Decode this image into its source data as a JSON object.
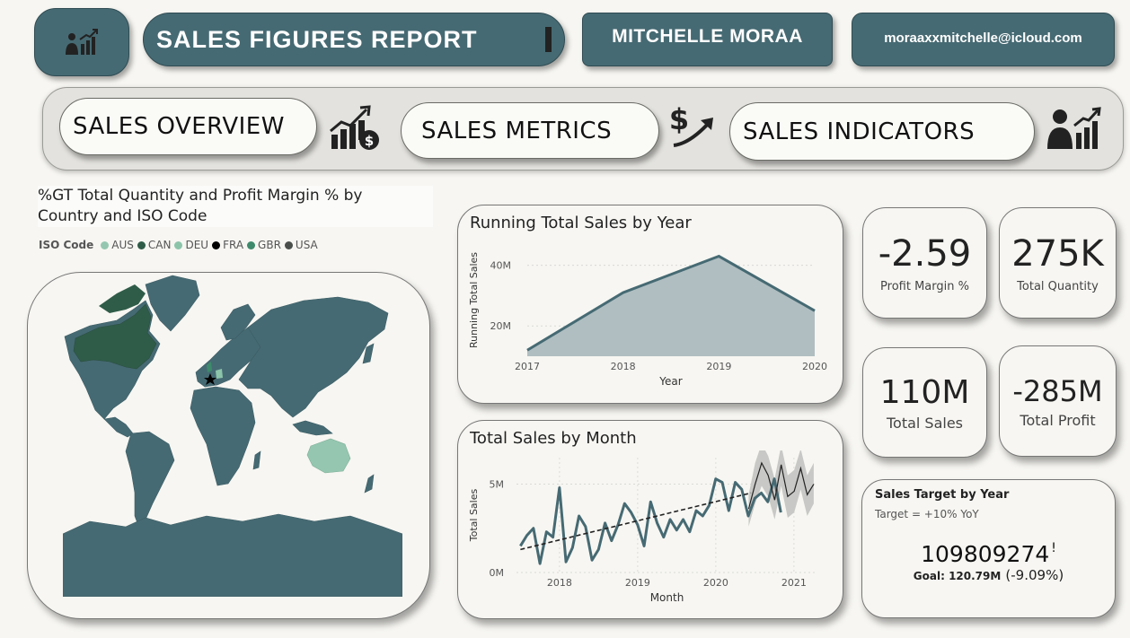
{
  "header": {
    "icon": "chart-bars-user-icon",
    "title": "SALES FIGURES REPORT",
    "author": "MITCHELLE MORAA",
    "email": "moraaxxmitchelle@icloud.com"
  },
  "nav": {
    "items": [
      {
        "label": "SALES OVERVIEW",
        "icon": "chart-money-icon"
      },
      {
        "label": "SALES METRICS",
        "icon": "dollar-arrow-icon"
      },
      {
        "label": "SALES INDICATORS",
        "icon": "people-chart-icon"
      }
    ]
  },
  "map": {
    "title_line1": "%GT Total Quantity and Profit Margin % by",
    "title_line2": "Country and ISO Code",
    "legend_title": "ISO Code",
    "legend": [
      {
        "code": "AUS",
        "color": "#95c7b0"
      },
      {
        "code": "CAN",
        "color": "#2f5c49"
      },
      {
        "code": "DEU",
        "color": "#8cc4aa"
      },
      {
        "code": "FRA",
        "color": "#000000"
      },
      {
        "code": "GBR",
        "color": "#3e8a6c"
      },
      {
        "code": "USA",
        "color": "#4a4f4c"
      }
    ],
    "land_color": "#466a73"
  },
  "kpis": [
    {
      "value": "-2.59",
      "label": "Profit Margin %"
    },
    {
      "value": "275K",
      "label": "Total Quantity"
    },
    {
      "value": "110M",
      "label": "Total Sales"
    },
    {
      "value": "-285M",
      "label": "Total Profit"
    }
  ],
  "target": {
    "title": "Sales Target by Year",
    "subtitle": "Target = +10% YoY",
    "value": "109809274",
    "mark": "!",
    "goal_label": "Goal: 120.79M",
    "goal_delta": "(-9.09%)"
  },
  "chart_data": [
    {
      "type": "area",
      "title": "Running Total Sales by Year",
      "xlabel": "Year",
      "ylabel": "Running Total Sales",
      "x": [
        2017,
        2018,
        2019,
        2020
      ],
      "series": [
        {
          "values": [
            12,
            31,
            43,
            25
          ]
        }
      ],
      "units": "M",
      "ylim": [
        10,
        47
      ],
      "yticks": [
        {
          "v": 20,
          "label": "20M"
        },
        {
          "v": 40,
          "label": "40M"
        }
      ],
      "xticks": [
        "2017",
        "2018",
        "2019",
        "2020"
      ],
      "color": "#466a73",
      "fill": "#b0bec1"
    },
    {
      "type": "line",
      "title": "Total Sales by Month",
      "xlabel": "Month",
      "ylabel": "Total Sales",
      "units": "M",
      "ylim": [
        0,
        6.5
      ],
      "yticks": [
        {
          "v": 0,
          "label": "0M"
        },
        {
          "v": 5,
          "label": "5M"
        }
      ],
      "xticks": [
        {
          "t": 2018,
          "label": "2018"
        },
        {
          "t": 2019,
          "label": "2019"
        },
        {
          "t": 2020,
          "label": "2020"
        },
        {
          "t": 2021,
          "label": "2021"
        }
      ],
      "xlim": [
        2017.45,
        2021.3
      ],
      "actual": {
        "t0": 2017.5,
        "step": 0.0833,
        "values": [
          1.5,
          2.1,
          2.5,
          0.5,
          2.3,
          2.0,
          4.8,
          0.6,
          1.4,
          3.2,
          2.6,
          0.7,
          1.3,
          2.8,
          1.8,
          2.7,
          3.9,
          3.4,
          2.7,
          1.5,
          4.0,
          2.8,
          2.0,
          3.0,
          2.4,
          3.0,
          2.3,
          3.5,
          3.2,
          3.8,
          5.3,
          5.1,
          3.5,
          5.1,
          4.7,
          3.2,
          4.2,
          4.5,
          4.0,
          5.3,
          3.4
        ]
      },
      "trend": {
        "start": [
          2017.5,
          1.3
        ],
        "end": [
          2020.45,
          4.5
        ]
      },
      "forecast": {
        "t0": 2020.42,
        "step": 0.0833,
        "values": [
          3.6,
          5.0,
          6.2,
          5.5,
          4.1,
          6.1,
          4.3,
          4.6,
          5.9,
          4.4,
          5.0
        ],
        "upper": [
          4.4,
          6.2,
          7.3,
          6.6,
          5.3,
          7.2,
          5.5,
          5.8,
          7.0,
          5.5,
          6.2
        ],
        "lower": [
          2.6,
          3.9,
          4.9,
          4.3,
          3.0,
          4.9,
          3.1,
          3.4,
          4.7,
          3.2,
          3.9
        ]
      },
      "color": "#466a73",
      "forecast_color": "#222222",
      "band_color": "#c8c8c6"
    }
  ]
}
